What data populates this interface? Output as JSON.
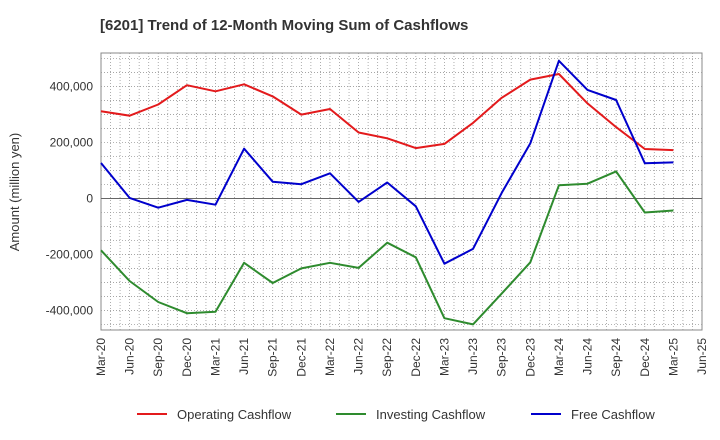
{
  "chart_data": {
    "type": "line",
    "title": "[6201]  Trend of 12-Month Moving Sum of Cashflows",
    "xlabel": "",
    "ylabel": "Amount (million yen)",
    "x": [
      "Mar-20",
      "Jun-20",
      "Sep-20",
      "Dec-20",
      "Mar-21",
      "Jun-21",
      "Sep-21",
      "Dec-21",
      "Mar-22",
      "Jun-22",
      "Sep-22",
      "Dec-22",
      "Mar-23",
      "Jun-23",
      "Sep-23",
      "Dec-23",
      "Mar-24",
      "Jun-24",
      "Sep-24",
      "Dec-24",
      "Mar-25",
      "Jun-25"
    ],
    "ylim": [
      -470000,
      520000
    ],
    "yticks": [
      -400000,
      -200000,
      0,
      200000,
      400000
    ],
    "ytick_labels": [
      "-400,000",
      "-200,000",
      "0",
      "200,000",
      "400,000"
    ],
    "grid": true,
    "legend_position": "bottom",
    "series": [
      {
        "name": "Operating Cashflow",
        "color": "#e31a1c",
        "values": [
          312000,
          296000,
          336000,
          405000,
          383000,
          408000,
          365000,
          300000,
          320000,
          236000,
          215000,
          180000,
          195000,
          270000,
          360000,
          425000,
          445000,
          340000,
          255000,
          177000,
          173000,
          null
        ]
      },
      {
        "name": "Investing Cashflow",
        "color": "#2e8b2e",
        "values": [
          -185000,
          -295000,
          -370000,
          -410000,
          -405000,
          -230000,
          -302000,
          -250000,
          -230000,
          -248000,
          -158000,
          -210000,
          -428000,
          -450000,
          -340000,
          -228000,
          47000,
          53000,
          97000,
          -50000,
          -43000,
          null
        ]
      },
      {
        "name": "Free Cashflow",
        "color": "#0000cc",
        "values": [
          127000,
          2000,
          -33000,
          -5000,
          -22000,
          178000,
          60000,
          51000,
          90000,
          -12000,
          57000,
          -28000,
          -233000,
          -180000,
          20000,
          197000,
          492000,
          388000,
          352000,
          126000,
          129000,
          null
        ]
      }
    ]
  }
}
